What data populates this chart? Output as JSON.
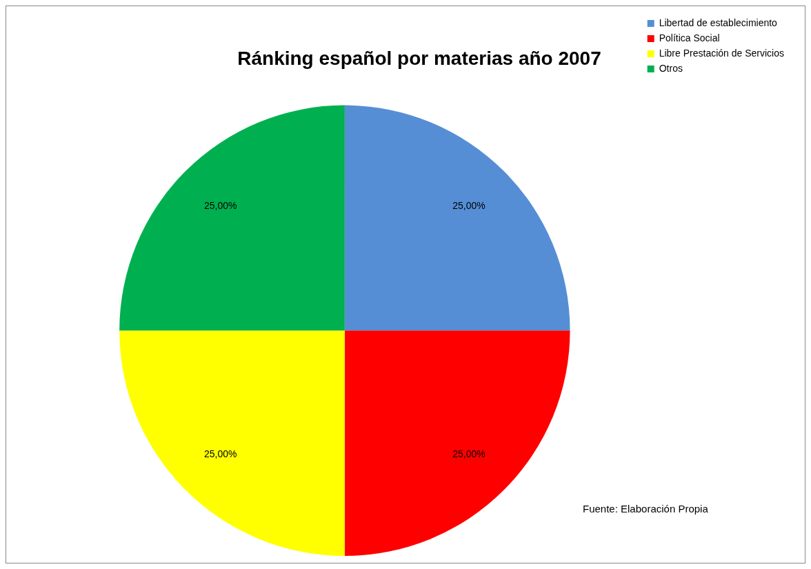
{
  "chart_data": {
    "type": "pie",
    "title": "Ránking español por materias año 2007",
    "categories": [
      "Libertad de establecimiento",
      "Política Social",
      "Libre Prestación de Servicios",
      "Otros"
    ],
    "values": [
      25,
      25,
      25,
      25
    ],
    "colors": [
      "#558ed5",
      "#ff0000",
      "#ffff00",
      "#00b050"
    ],
    "value_labels": [
      "25,00%",
      "25,00%",
      "25,00%",
      "25,00%"
    ],
    "legend": "top right",
    "annotations": [
      "Fuente: Elaboración Propia"
    ]
  }
}
